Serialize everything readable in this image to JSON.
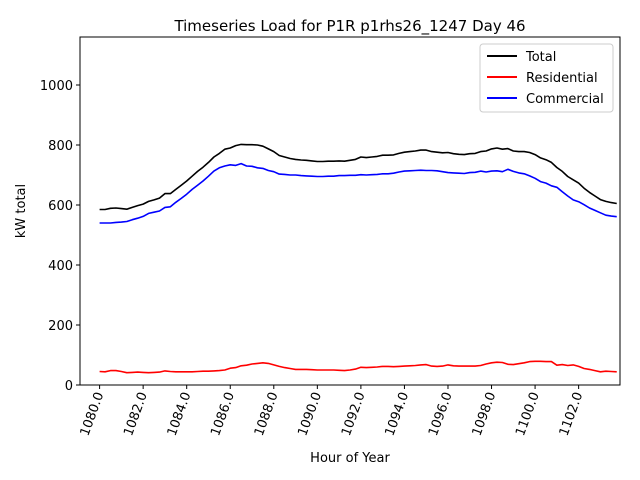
{
  "chart_data": {
    "type": "line",
    "title": "Timeseries Load for P1R p1rhs26_1247  Day 46",
    "xlabel": "Hour of Year",
    "ylabel": "kW total",
    "xlim": [
      1079.1,
      1103.9
    ],
    "ylim": [
      0,
      1160
    ],
    "x_ticks": [
      1080,
      1082,
      1084,
      1086,
      1088,
      1090,
      1092,
      1094,
      1096,
      1098,
      1100,
      1102
    ],
    "x_tick_labels": [
      "1080.0",
      "1082.0",
      "1084.0",
      "1086.0",
      "1088.0",
      "1090.0",
      "1092.0",
      "1094.0",
      "1096.0",
      "1098.0",
      "1100.0",
      "1102.0"
    ],
    "y_ticks": [
      0,
      200,
      400,
      600,
      800,
      1000
    ],
    "y_tick_labels": [
      "0",
      "200",
      "400",
      "600",
      "800",
      "1000"
    ],
    "legend_position": "top-right",
    "series": [
      {
        "name": "Total",
        "color": "#000000",
        "points": [
          [
            1080,
            585
          ],
          [
            1080.25,
            585
          ],
          [
            1080.5,
            589
          ],
          [
            1080.75,
            590
          ],
          [
            1081,
            588
          ],
          [
            1081.25,
            586
          ],
          [
            1081.5,
            592
          ],
          [
            1081.75,
            598
          ],
          [
            1082,
            603
          ],
          [
            1082.25,
            612
          ],
          [
            1082.5,
            617
          ],
          [
            1082.75,
            623
          ],
          [
            1083,
            638
          ],
          [
            1083.25,
            638
          ],
          [
            1083.5,
            652
          ],
          [
            1083.75,
            666
          ],
          [
            1084,
            680
          ],
          [
            1084.25,
            696
          ],
          [
            1084.5,
            712
          ],
          [
            1084.75,
            726
          ],
          [
            1085,
            742
          ],
          [
            1085.25,
            760
          ],
          [
            1085.5,
            772
          ],
          [
            1085.75,
            786
          ],
          [
            1086,
            790
          ],
          [
            1086.25,
            798
          ],
          [
            1086.5,
            802
          ],
          [
            1086.75,
            801
          ],
          [
            1087,
            801
          ],
          [
            1087.25,
            800
          ],
          [
            1087.5,
            796
          ],
          [
            1087.75,
            787
          ],
          [
            1088,
            778
          ],
          [
            1088.25,
            765
          ],
          [
            1088.5,
            760
          ],
          [
            1088.75,
            755
          ],
          [
            1089,
            752
          ],
          [
            1089.25,
            750
          ],
          [
            1089.5,
            749
          ],
          [
            1089.75,
            747
          ],
          [
            1090,
            745
          ],
          [
            1090.25,
            745
          ],
          [
            1090.5,
            746
          ],
          [
            1090.75,
            746
          ],
          [
            1091,
            747
          ],
          [
            1091.25,
            746
          ],
          [
            1091.5,
            749
          ],
          [
            1091.75,
            752
          ],
          [
            1092,
            760
          ],
          [
            1092.25,
            758
          ],
          [
            1092.5,
            760
          ],
          [
            1092.75,
            762
          ],
          [
            1093,
            766
          ],
          [
            1093.25,
            766
          ],
          [
            1093.5,
            767
          ],
          [
            1093.75,
            772
          ],
          [
            1094,
            776
          ],
          [
            1094.25,
            778
          ],
          [
            1094.5,
            780
          ],
          [
            1094.75,
            783
          ],
          [
            1095,
            783
          ],
          [
            1095.25,
            778
          ],
          [
            1095.5,
            776
          ],
          [
            1095.75,
            774
          ],
          [
            1096,
            775
          ],
          [
            1096.25,
            771
          ],
          [
            1096.5,
            769
          ],
          [
            1096.75,
            768
          ],
          [
            1097,
            771
          ],
          [
            1097.25,
            772
          ],
          [
            1097.5,
            778
          ],
          [
            1097.75,
            780
          ],
          [
            1098,
            787
          ],
          [
            1098.25,
            790
          ],
          [
            1098.5,
            786
          ],
          [
            1098.75,
            788
          ],
          [
            1099,
            780
          ],
          [
            1099.25,
            778
          ],
          [
            1099.5,
            778
          ],
          [
            1099.75,
            775
          ],
          [
            1100,
            768
          ],
          [
            1100.25,
            757
          ],
          [
            1100.5,
            751
          ],
          [
            1100.75,
            742
          ],
          [
            1101,
            725
          ],
          [
            1101.25,
            712
          ],
          [
            1101.5,
            695
          ],
          [
            1101.75,
            684
          ],
          [
            1102,
            673
          ],
          [
            1102.25,
            656
          ],
          [
            1102.5,
            642
          ],
          [
            1102.75,
            630
          ],
          [
            1103,
            618
          ],
          [
            1103.25,
            612
          ],
          [
            1103.5,
            608
          ],
          [
            1103.75,
            605
          ]
        ]
      },
      {
        "name": "Residential",
        "color": "#ff0000",
        "points": [
          [
            1080,
            45
          ],
          [
            1080.25,
            44
          ],
          [
            1080.5,
            48
          ],
          [
            1080.75,
            48
          ],
          [
            1081,
            45
          ],
          [
            1081.25,
            41
          ],
          [
            1081.5,
            42
          ],
          [
            1081.75,
            43
          ],
          [
            1082,
            42
          ],
          [
            1082.25,
            41
          ],
          [
            1082.5,
            42
          ],
          [
            1082.75,
            43
          ],
          [
            1083,
            47
          ],
          [
            1083.25,
            45
          ],
          [
            1083.5,
            44
          ],
          [
            1083.75,
            44
          ],
          [
            1084,
            44
          ],
          [
            1084.25,
            44
          ],
          [
            1084.5,
            45
          ],
          [
            1084.75,
            46
          ],
          [
            1085,
            46
          ],
          [
            1085.25,
            47
          ],
          [
            1085.5,
            48
          ],
          [
            1085.75,
            50
          ],
          [
            1086,
            56
          ],
          [
            1086.25,
            58
          ],
          [
            1086.5,
            64
          ],
          [
            1086.75,
            66
          ],
          [
            1087,
            70
          ],
          [
            1087.25,
            72
          ],
          [
            1087.5,
            74
          ],
          [
            1087.75,
            72
          ],
          [
            1088,
            67
          ],
          [
            1088.25,
            62
          ],
          [
            1088.5,
            58
          ],
          [
            1088.75,
            55
          ],
          [
            1089,
            52
          ],
          [
            1089.25,
            52
          ],
          [
            1089.5,
            52
          ],
          [
            1089.75,
            51
          ],
          [
            1090,
            50
          ],
          [
            1090.25,
            50
          ],
          [
            1090.5,
            50
          ],
          [
            1090.75,
            50
          ],
          [
            1091,
            49
          ],
          [
            1091.25,
            48
          ],
          [
            1091.5,
            50
          ],
          [
            1091.75,
            53
          ],
          [
            1092,
            59
          ],
          [
            1092.25,
            58
          ],
          [
            1092.5,
            59
          ],
          [
            1092.75,
            60
          ],
          [
            1093,
            62
          ],
          [
            1093.25,
            62
          ],
          [
            1093.5,
            61
          ],
          [
            1093.75,
            62
          ],
          [
            1094,
            63
          ],
          [
            1094.25,
            64
          ],
          [
            1094.5,
            65
          ],
          [
            1094.75,
            67
          ],
          [
            1095,
            68
          ],
          [
            1095.25,
            63
          ],
          [
            1095.5,
            62
          ],
          [
            1095.75,
            63
          ],
          [
            1096,
            67
          ],
          [
            1096.25,
            64
          ],
          [
            1096.5,
            63
          ],
          [
            1096.75,
            63
          ],
          [
            1097,
            63
          ],
          [
            1097.25,
            63
          ],
          [
            1097.5,
            65
          ],
          [
            1097.75,
            70
          ],
          [
            1098,
            74
          ],
          [
            1098.25,
            76
          ],
          [
            1098.5,
            75
          ],
          [
            1098.75,
            69
          ],
          [
            1099,
            68
          ],
          [
            1099.25,
            71
          ],
          [
            1099.5,
            74
          ],
          [
            1099.75,
            78
          ],
          [
            1100,
            79
          ],
          [
            1100.25,
            79
          ],
          [
            1100.5,
            78
          ],
          [
            1100.75,
            78
          ],
          [
            1101,
            66
          ],
          [
            1101.25,
            68
          ],
          [
            1101.5,
            65
          ],
          [
            1101.75,
            67
          ],
          [
            1102,
            62
          ],
          [
            1102.25,
            55
          ],
          [
            1102.5,
            52
          ],
          [
            1102.75,
            48
          ],
          [
            1103,
            44
          ],
          [
            1103.25,
            46
          ],
          [
            1103.5,
            45
          ],
          [
            1103.75,
            44
          ]
        ]
      },
      {
        "name": "Commercial",
        "color": "#0000ff",
        "points": [
          [
            1080,
            540
          ],
          [
            1080.25,
            540
          ],
          [
            1080.5,
            540
          ],
          [
            1080.75,
            542
          ],
          [
            1081,
            543
          ],
          [
            1081.25,
            545
          ],
          [
            1081.5,
            551
          ],
          [
            1081.75,
            556
          ],
          [
            1082,
            562
          ],
          [
            1082.25,
            572
          ],
          [
            1082.5,
            576
          ],
          [
            1082.75,
            580
          ],
          [
            1083,
            592
          ],
          [
            1083.25,
            594
          ],
          [
            1083.5,
            609
          ],
          [
            1083.75,
            622
          ],
          [
            1084,
            636
          ],
          [
            1084.25,
            652
          ],
          [
            1084.5,
            666
          ],
          [
            1084.75,
            680
          ],
          [
            1085,
            696
          ],
          [
            1085.25,
            713
          ],
          [
            1085.5,
            724
          ],
          [
            1085.75,
            730
          ],
          [
            1086,
            734
          ],
          [
            1086.25,
            732
          ],
          [
            1086.5,
            738
          ],
          [
            1086.75,
            730
          ],
          [
            1087,
            729
          ],
          [
            1087.25,
            724
          ],
          [
            1087.5,
            722
          ],
          [
            1087.75,
            715
          ],
          [
            1088,
            711
          ],
          [
            1088.25,
            703
          ],
          [
            1088.5,
            702
          ],
          [
            1088.75,
            700
          ],
          [
            1089,
            700
          ],
          [
            1089.25,
            698
          ],
          [
            1089.5,
            697
          ],
          [
            1089.75,
            696
          ],
          [
            1090,
            695
          ],
          [
            1090.25,
            695
          ],
          [
            1090.5,
            696
          ],
          [
            1090.75,
            696
          ],
          [
            1091,
            698
          ],
          [
            1091.25,
            698
          ],
          [
            1091.5,
            699
          ],
          [
            1091.75,
            699
          ],
          [
            1092,
            701
          ],
          [
            1092.25,
            700
          ],
          [
            1092.5,
            701
          ],
          [
            1092.75,
            702
          ],
          [
            1093,
            704
          ],
          [
            1093.25,
            704
          ],
          [
            1093.5,
            706
          ],
          [
            1093.75,
            710
          ],
          [
            1094,
            713
          ],
          [
            1094.25,
            714
          ],
          [
            1094.5,
            715
          ],
          [
            1094.75,
            716
          ],
          [
            1095,
            715
          ],
          [
            1095.25,
            715
          ],
          [
            1095.5,
            714
          ],
          [
            1095.75,
            711
          ],
          [
            1096,
            708
          ],
          [
            1096.25,
            707
          ],
          [
            1096.5,
            706
          ],
          [
            1096.75,
            705
          ],
          [
            1097,
            708
          ],
          [
            1097.25,
            709
          ],
          [
            1097.5,
            713
          ],
          [
            1097.75,
            710
          ],
          [
            1098,
            713
          ],
          [
            1098.25,
            714
          ],
          [
            1098.5,
            711
          ],
          [
            1098.75,
            719
          ],
          [
            1099,
            712
          ],
          [
            1099.25,
            707
          ],
          [
            1099.5,
            704
          ],
          [
            1099.75,
            697
          ],
          [
            1100,
            689
          ],
          [
            1100.25,
            678
          ],
          [
            1100.5,
            673
          ],
          [
            1100.75,
            664
          ],
          [
            1101,
            659
          ],
          [
            1101.25,
            644
          ],
          [
            1101.5,
            630
          ],
          [
            1101.75,
            617
          ],
          [
            1102,
            611
          ],
          [
            1102.25,
            601
          ],
          [
            1102.5,
            590
          ],
          [
            1102.75,
            582
          ],
          [
            1103,
            574
          ],
          [
            1103.25,
            566
          ],
          [
            1103.5,
            563
          ],
          [
            1103.75,
            561
          ]
        ]
      }
    ]
  }
}
